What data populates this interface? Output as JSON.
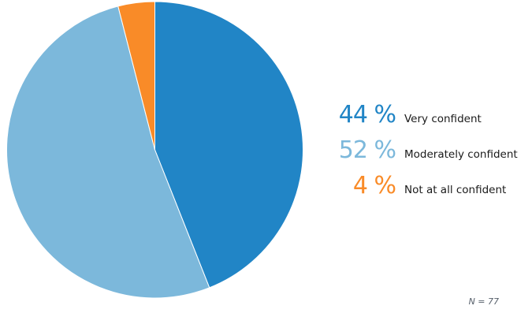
{
  "chart_data": {
    "type": "pie",
    "title": "",
    "categories": [
      "Very confident",
      "Moderately confident",
      "Not at all confident"
    ],
    "values": [
      44,
      52,
      4
    ],
    "unit": "%",
    "colors": [
      "#2185c6",
      "#7cb8db",
      "#f98b28"
    ],
    "start_angle": "top",
    "direction": "clockwise",
    "legend_position": "right",
    "annotation": "N = 77"
  },
  "legend": {
    "rows": [
      {
        "pct": "44 %",
        "label": "Very confident",
        "color": "#2185c6"
      },
      {
        "pct": "52 %",
        "label": "Moderately confident",
        "color": "#7cb8db"
      },
      {
        "pct": "4 %",
        "label": "Not at all confident",
        "color": "#f98b28"
      }
    ]
  },
  "footnote": {
    "text": "N = 77"
  }
}
